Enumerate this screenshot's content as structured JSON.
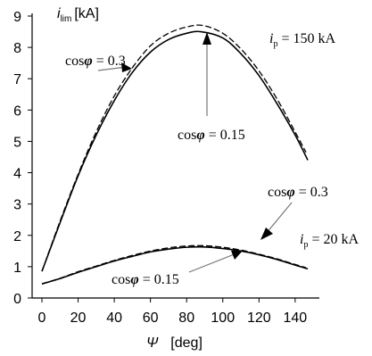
{
  "chart_data": {
    "type": "line",
    "ylabel": {
      "symbol": "i",
      "subscript": "lim",
      "unit": "[kA]"
    },
    "xlabel": {
      "symbol": "Ψ",
      "unit": "[deg]"
    },
    "xlim": [
      0,
      145
    ],
    "ylim": [
      0,
      9
    ],
    "xticks": [
      0,
      20,
      40,
      60,
      80,
      100,
      120,
      140
    ],
    "yticks": [
      0,
      1,
      2,
      3,
      4,
      5,
      6,
      7,
      8,
      9
    ],
    "grid": false,
    "series": [
      {
        "group": "ip150",
        "style": "solid",
        "x": [
          0,
          10,
          20,
          30,
          40,
          50,
          60,
          70,
          80,
          88,
          100,
          110,
          120,
          130,
          140,
          147
        ],
        "y": [
          0.85,
          2.4,
          3.9,
          5.2,
          6.3,
          7.2,
          7.85,
          8.25,
          8.45,
          8.5,
          8.3,
          7.8,
          7.1,
          6.2,
          5.2,
          4.4
        ]
      },
      {
        "group": "ip150",
        "style": "dashed",
        "x": [
          0,
          10,
          20,
          30,
          40,
          50,
          60,
          70,
          80,
          89,
          100,
          110,
          120,
          130,
          140,
          146
        ],
        "y": [
          0.85,
          2.45,
          3.95,
          5.3,
          6.45,
          7.35,
          8.05,
          8.45,
          8.65,
          8.7,
          8.45,
          7.95,
          7.25,
          6.35,
          5.3,
          4.65
        ]
      },
      {
        "group": "ip20",
        "style": "solid",
        "x": [
          0,
          10,
          20,
          30,
          40,
          50,
          60,
          70,
          80,
          90,
          100,
          110,
          120,
          130,
          140,
          147
        ],
        "y": [
          0.45,
          0.62,
          0.82,
          1.0,
          1.18,
          1.33,
          1.47,
          1.56,
          1.62,
          1.63,
          1.58,
          1.5,
          1.38,
          1.23,
          1.05,
          0.93
        ]
      },
      {
        "group": "ip20",
        "style": "dashed",
        "x": [
          0,
          10,
          20,
          30,
          40,
          50,
          60,
          70,
          80,
          90,
          100,
          110,
          120,
          130,
          140,
          146
        ],
        "y": [
          0.45,
          0.63,
          0.84,
          1.02,
          1.2,
          1.36,
          1.5,
          1.6,
          1.66,
          1.67,
          1.62,
          1.53,
          1.4,
          1.25,
          1.07,
          0.97
        ]
      }
    ],
    "annotations": [
      {
        "id": "cos03_top",
        "prefix": "cos",
        "symbol": "φ",
        "suffix": " = 0.3"
      },
      {
        "id": "ip150",
        "symbol": "i",
        "subscript": "p",
        "suffix": " = 150 kA"
      },
      {
        "id": "cos015_top",
        "prefix": "cos",
        "symbol": "φ",
        "suffix": " = 0.15"
      },
      {
        "id": "cos03_bottom",
        "prefix": "cos",
        "symbol": "φ",
        "suffix": " = 0.3"
      },
      {
        "id": "ip20",
        "symbol": "i",
        "subscript": "p",
        "suffix": " = 20 kA"
      },
      {
        "id": "cos015_bottom",
        "prefix": "cos",
        "symbol": "φ",
        "suffix": " = 0.15"
      }
    ]
  }
}
